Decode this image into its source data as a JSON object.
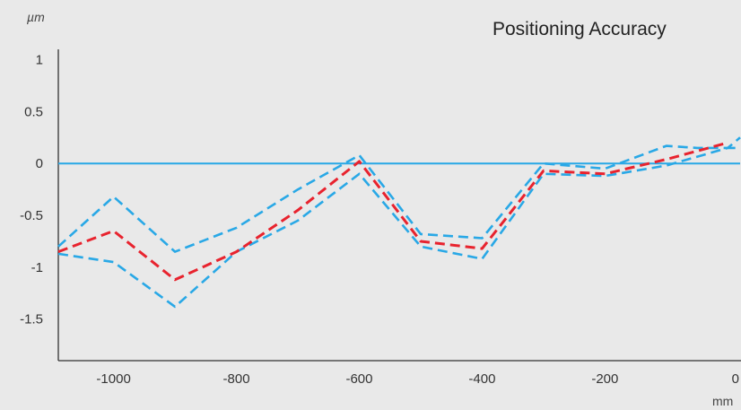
{
  "chart_data": {
    "type": "line",
    "title": "Positioning Accuracy",
    "ylabel": "µm",
    "xlabel": "mm",
    "xlim": [
      -1090,
      20
    ],
    "ylim": [
      -1.9,
      1.1
    ],
    "x_ticks": [
      -1000,
      -800,
      -600,
      -400,
      -200,
      0
    ],
    "x_tick_labels": [
      "-1000",
      "-800",
      "-600",
      "-400",
      "-200",
      "0"
    ],
    "y_ticks": [
      1,
      0.5,
      0,
      -0.5,
      -1,
      -1.5
    ],
    "y_tick_labels": [
      "1",
      "0.5",
      "0",
      "-0.5",
      "-1",
      "-1.5"
    ],
    "grid": false,
    "reference_line": 0,
    "series": [
      {
        "color": "#e8232e",
        "style": "dashed",
        "x": [
          -1090,
          -1000,
          -900,
          -800,
          -700,
          -600,
          -500,
          -400,
          -300,
          -200,
          -100,
          0
        ],
        "y": [
          -0.85,
          -0.65,
          -1.12,
          -0.85,
          -0.45,
          0.02,
          -0.75,
          -0.82,
          -0.07,
          -0.1,
          0.04,
          0.2
        ]
      },
      {
        "color": "#29a8e6",
        "style": "dashed",
        "x": [
          -1090,
          -1000,
          -900,
          -800,
          -700,
          -600,
          -500,
          -400,
          -300,
          -200,
          -100,
          -50,
          0,
          20
        ],
        "y": [
          -0.8,
          -0.32,
          -0.85,
          -0.62,
          -0.25,
          0.08,
          -0.68,
          -0.72,
          0.0,
          -0.05,
          0.17,
          0.15,
          0.15,
          0.25
        ]
      },
      {
        "color": "#29a8e6",
        "style": "dashed",
        "x": [
          -1090,
          -1000,
          -900,
          -800,
          -700,
          -600,
          -500,
          -400,
          -300,
          -200,
          -100,
          0,
          20
        ],
        "y": [
          -0.87,
          -0.95,
          -1.38,
          -0.85,
          -0.55,
          -0.1,
          -0.8,
          -0.92,
          -0.1,
          -0.12,
          -0.02,
          0.15,
          0.15
        ]
      }
    ]
  },
  "colors": {
    "background": "#e9e9e9",
    "axis": "#333333",
    "reference_line": "#29a8e6"
  }
}
